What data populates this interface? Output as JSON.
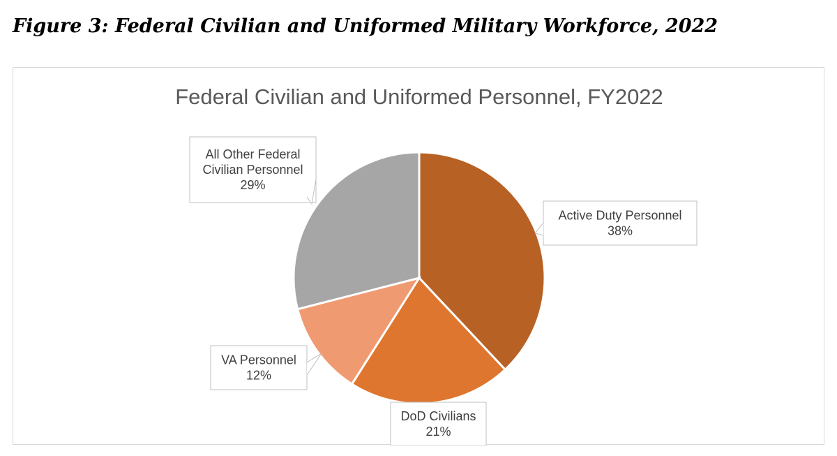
{
  "figure_caption": "Figure 3: Federal Civilian and Uniformed Military Workforce, 2022",
  "chart_data": {
    "type": "pie",
    "title": "Federal Civilian and Uniformed Personnel, FY2022",
    "slices": [
      {
        "name": "Active Duty Personnel",
        "label_lines": [
          "Active Duty Personnel"
        ],
        "value": 38,
        "value_label": "38%",
        "color": "#b86124"
      },
      {
        "name": "DoD Civilians",
        "label_lines": [
          "DoD Civilians"
        ],
        "value": 21,
        "value_label": "21%",
        "color": "#df762f"
      },
      {
        "name": "VA Personnel",
        "label_lines": [
          "VA Personnel"
        ],
        "value": 12,
        "value_label": "12%",
        "color": "#f09a72"
      },
      {
        "name": "All Other Federal Civilian Personnel",
        "label_lines": [
          "All Other Federal",
          "Civilian Personnel"
        ],
        "value": 29,
        "value_label": "29%",
        "color": "#a6a6a6"
      }
    ],
    "start_angle_deg": 0,
    "direction": "clockwise",
    "legend": "none",
    "data_labels": "callouts"
  }
}
